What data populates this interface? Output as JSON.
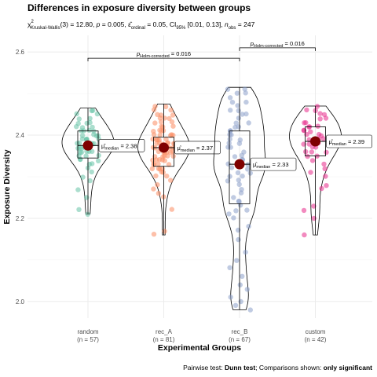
{
  "chart_data": {
    "type": "violin",
    "title": "Differences in exposure diversity between groups",
    "subtitle": {
      "pre": "χ",
      "sup2": "2",
      "sub1": "Kruskal-Wallis",
      "part1": "(3) = 12.80, ",
      "p": "p",
      "part2": " = 0.005, ",
      "eps": "ε̂",
      "sub2": "ordinal",
      "part3": " = 0.05, CI",
      "sub3": "95%",
      "part4": " [0.01, 0.13], ",
      "n": "n",
      "sub4": "obs",
      "part5": " = 247"
    },
    "xlabel": "Experimental Groups",
    "ylabel": "Exposure Diversity",
    "ylim": [
      1.96,
      2.64
    ],
    "yticks": [
      "2.0",
      "2.2",
      "2.4",
      "2.6"
    ],
    "ytick_values": [
      2.0,
      2.2,
      2.4,
      2.6
    ],
    "grid": true,
    "categories": [
      "random",
      "rec_A",
      "rec_B",
      "custom"
    ],
    "n_labels": [
      "(n = 57)",
      "(n = 81)",
      "(n = 67)",
      "(n = 42)"
    ],
    "colors": [
      "#66c2a5",
      "#fc8d62",
      "#8da0cb",
      "#e7298a"
    ],
    "median_color": "#7f0000",
    "groups": [
      {
        "min": 2.21,
        "q1": 2.345,
        "median": 2.375,
        "q3": 2.41,
        "max": 2.465,
        "median_label_pre": "μ̂",
        "median_label_sub": "median",
        "median_label_val": " = 2.38",
        "points": [
          2.21,
          2.22,
          2.25,
          2.27,
          2.29,
          2.3,
          2.31,
          2.32,
          2.33,
          2.33,
          2.34,
          2.34,
          2.35,
          2.35,
          2.35,
          2.36,
          2.36,
          2.36,
          2.36,
          2.37,
          2.37,
          2.37,
          2.37,
          2.37,
          2.38,
          2.38,
          2.38,
          2.38,
          2.38,
          2.38,
          2.39,
          2.39,
          2.39,
          2.39,
          2.39,
          2.4,
          2.4,
          2.4,
          2.4,
          2.41,
          2.41,
          2.41,
          2.41,
          2.42,
          2.42,
          2.42,
          2.43,
          2.43,
          2.43,
          2.44,
          2.44,
          2.45,
          2.45,
          2.46,
          2.46,
          2.36,
          2.34
        ]
      },
      {
        "min": 2.16,
        "q1": 2.325,
        "median": 2.37,
        "q3": 2.395,
        "max": 2.475,
        "median_label_pre": "μ̂",
        "median_label_sub": "median",
        "median_label_val": " = 2.37",
        "points": [
          2.16,
          2.17,
          2.22,
          2.25,
          2.26,
          2.27,
          2.28,
          2.29,
          2.3,
          2.3,
          2.31,
          2.31,
          2.32,
          2.32,
          2.32,
          2.33,
          2.33,
          2.33,
          2.33,
          2.34,
          2.34,
          2.34,
          2.34,
          2.35,
          2.35,
          2.35,
          2.35,
          2.35,
          2.36,
          2.36,
          2.36,
          2.36,
          2.36,
          2.37,
          2.37,
          2.37,
          2.37,
          2.37,
          2.37,
          2.37,
          2.38,
          2.38,
          2.38,
          2.38,
          2.38,
          2.38,
          2.39,
          2.39,
          2.39,
          2.39,
          2.39,
          2.4,
          2.4,
          2.4,
          2.4,
          2.41,
          2.41,
          2.41,
          2.41,
          2.42,
          2.42,
          2.42,
          2.43,
          2.43,
          2.43,
          2.44,
          2.44,
          2.44,
          2.45,
          2.45,
          2.45,
          2.46,
          2.46,
          2.47,
          2.47,
          2.36,
          2.34,
          2.38,
          2.4,
          2.32,
          2.37
        ]
      },
      {
        "min": 1.98,
        "q1": 2.235,
        "median": 2.33,
        "q3": 2.41,
        "max": 2.515,
        "median_label_pre": "μ̂",
        "median_label_sub": "median",
        "median_label_val": " = 2.33",
        "points": [
          1.98,
          1.99,
          2.0,
          2.01,
          2.03,
          2.04,
          2.06,
          2.08,
          2.1,
          2.12,
          2.15,
          2.17,
          2.18,
          2.2,
          2.21,
          2.22,
          2.22,
          2.23,
          2.24,
          2.24,
          2.25,
          2.26,
          2.27,
          2.28,
          2.29,
          2.29,
          2.3,
          2.3,
          2.31,
          2.31,
          2.32,
          2.32,
          2.33,
          2.33,
          2.33,
          2.34,
          2.34,
          2.35,
          2.35,
          2.36,
          2.37,
          2.37,
          2.38,
          2.38,
          2.39,
          2.39,
          2.4,
          2.4,
          2.41,
          2.41,
          2.42,
          2.42,
          2.43,
          2.43,
          2.44,
          2.45,
          2.45,
          2.46,
          2.46,
          2.47,
          2.48,
          2.48,
          2.49,
          2.5,
          2.5,
          2.51,
          2.51
        ]
      },
      {
        "min": 2.16,
        "q1": 2.35,
        "median": 2.385,
        "q3": 2.42,
        "max": 2.47,
        "median_label_pre": "μ̂",
        "median_label_sub": "median",
        "median_label_val": " = 2.39",
        "points": [
          2.16,
          2.2,
          2.22,
          2.23,
          2.27,
          2.28,
          2.3,
          2.31,
          2.32,
          2.33,
          2.34,
          2.35,
          2.35,
          2.36,
          2.36,
          2.37,
          2.37,
          2.38,
          2.38,
          2.38,
          2.39,
          2.39,
          2.39,
          2.4,
          2.4,
          2.4,
          2.41,
          2.41,
          2.41,
          2.42,
          2.42,
          2.42,
          2.43,
          2.43,
          2.44,
          2.44,
          2.45,
          2.45,
          2.46,
          2.46,
          2.47,
          2.36
        ]
      }
    ],
    "comparisons": [
      {
        "from": 0,
        "to": 2,
        "y": 2.585,
        "label_p": "p",
        "label_sub": "Holm-corrected",
        "label_val": " = 0.016"
      },
      {
        "from": 2,
        "to": 3,
        "y": 2.61,
        "label_p": "p",
        "label_sub": "Holm-corrected",
        "label_val": " = 0.016"
      }
    ],
    "caption": {
      "pre": "Pairwise test: ",
      "test": "Dunn test",
      "mid": "; Comparisons shown: ",
      "shown": "only significant"
    }
  }
}
